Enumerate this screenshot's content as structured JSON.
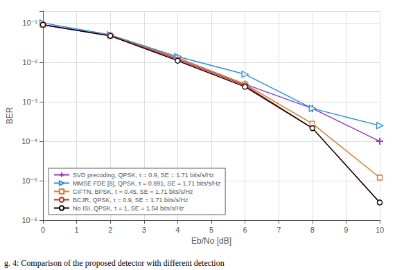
{
  "chart_data": {
    "type": "line",
    "xlabel": "Eb/No [dB]",
    "ylabel": "BER",
    "annotations": [
      "g. 4: Comparison of the proposed detector with different detection"
    ],
    "x": [
      0,
      2,
      4,
      6,
      8,
      10
    ],
    "xlim": [
      0,
      10
    ],
    "xticks": [
      0,
      1,
      2,
      3,
      4,
      5,
      6,
      7,
      8,
      9,
      10
    ],
    "ylim": [
      1e-06,
      0.2
    ],
    "yticks": [
      {
        "value": 1e-06,
        "label": "10⁻⁶"
      },
      {
        "value": 1e-05,
        "label": "10⁻⁵"
      },
      {
        "value": 0.0001,
        "label": "10⁻⁴"
      },
      {
        "value": 0.001,
        "label": "10⁻³"
      },
      {
        "value": 0.01,
        "label": "10⁻²"
      },
      {
        "value": 0.1,
        "label": "10⁻¹"
      }
    ],
    "log": "y",
    "grid": true,
    "legend": "lower left",
    "series": [
      {
        "name": "SVD precoding, QPSK, τ = 0.9, SE = 1.71 bits/s/Hz",
        "color": "#9B30D0",
        "marker": "plus",
        "values": [
          0.09,
          0.048,
          0.013,
          0.0028,
          0.00068,
          0.0001
        ]
      },
      {
        "name": "MMSE FDE [8], QPSK, τ = 0.891, SE = 1.71 bits/s/Hz",
        "color": "#1E90FF",
        "marker": "triangle-right",
        "values": [
          0.1,
          0.05,
          0.014,
          0.005,
          0.00068,
          0.00025
        ]
      },
      {
        "name": "CIFTN, BPSK, τ = 0.45, SE = 1.71 bits/s/Hz",
        "color": "#E07820",
        "marker": "square",
        "values": [
          0.09,
          0.048,
          0.013,
          0.0028,
          0.00028,
          1.2e-05
        ]
      },
      {
        "name": "BCJR, QPSK, τ = 0.9, SE = 1.71 bits/s/Hz",
        "color": "#CC2020",
        "marker": "circle",
        "values": [
          0.09,
          0.047,
          0.012,
          0.0026,
          0.000215,
          2.8e-06
        ]
      },
      {
        "name": "No ISI, QPSK, τ = 1, SE = 1.54 bits/s/Hz",
        "color": "#000000",
        "marker": "circle",
        "values": [
          0.09,
          0.047,
          0.011,
          0.0024,
          0.000215,
          2.8e-06
        ]
      }
    ]
  }
}
